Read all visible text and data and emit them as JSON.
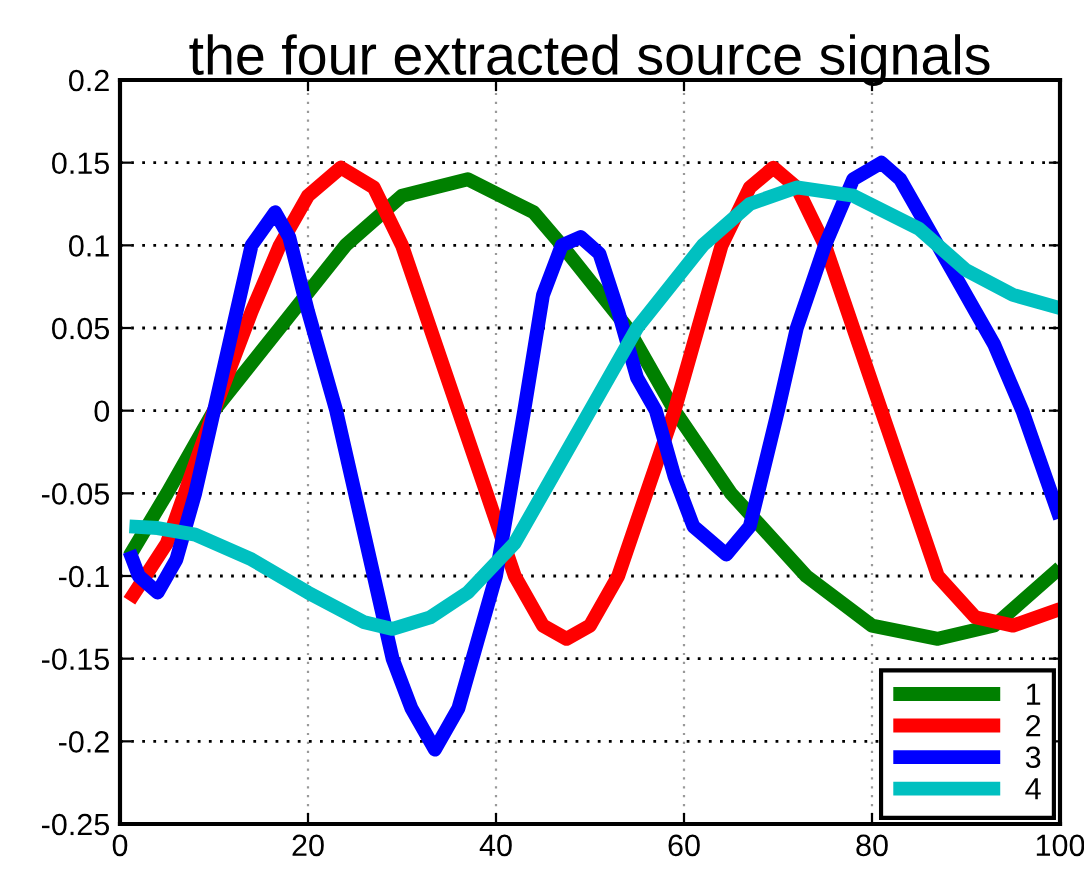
{
  "chart_data": {
    "type": "line",
    "title": "the four extracted source signals",
    "xlim": [
      0,
      100
    ],
    "ylim": [
      -0.25,
      0.2
    ],
    "xticks": [
      0,
      20,
      40,
      60,
      80,
      100
    ],
    "yticks": [
      -0.25,
      -0.2,
      -0.15,
      -0.1,
      -0.05,
      0,
      0.05,
      0.1,
      0.15,
      0.2
    ],
    "grid": true,
    "legend": "bottom right",
    "line_style": "solid",
    "marker": "none",
    "series": [
      {
        "name": "1",
        "color": "#008000",
        "x": [
          1,
          5,
          10,
          17,
          24,
          30,
          37,
          44,
          47,
          54,
          59,
          65,
          73,
          80,
          87,
          93,
          100
        ],
        "values": [
          -0.088,
          -0.05,
          0,
          0.05,
          0.1,
          0.13,
          0.14,
          0.12,
          0.1,
          0.05,
          0,
          -0.05,
          -0.1,
          -0.13,
          -0.138,
          -0.13,
          -0.095
        ]
      },
      {
        "name": "2",
        "color": "#ff0000",
        "x": [
          1,
          5,
          10,
          14,
          17,
          20,
          23.5,
          27,
          30,
          33,
          36,
          39,
          42,
          45,
          47.5,
          50,
          53,
          56,
          59,
          62,
          64,
          67,
          69.5,
          72,
          75,
          78,
          81,
          84,
          87,
          91,
          95,
          100
        ],
        "values": [
          -0.115,
          -0.08,
          0,
          0.06,
          0.1,
          0.13,
          0.147,
          0.135,
          0.1,
          0.05,
          0,
          -0.05,
          -0.1,
          -0.13,
          -0.138,
          -0.13,
          -0.1,
          -0.05,
          0,
          0.06,
          0.1,
          0.135,
          0.147,
          0.135,
          0.1,
          0.05,
          0,
          -0.05,
          -0.1,
          -0.125,
          -0.13,
          -0.12
        ]
      },
      {
        "name": "3",
        "color": "#0000ff",
        "x": [
          1,
          2,
          4,
          6,
          8,
          10,
          12,
          14,
          16.5,
          18,
          20,
          23,
          25,
          27,
          29,
          31,
          33.5,
          36,
          38,
          40,
          43,
          45,
          47,
          49,
          51,
          53,
          55,
          57,
          59,
          61,
          64.5,
          67,
          70,
          72,
          75,
          78,
          81,
          83,
          85,
          87,
          89,
          91,
          93,
          96,
          100
        ],
        "values": [
          -0.085,
          -0.1,
          -0.11,
          -0.09,
          -0.05,
          0,
          0.05,
          0.1,
          0.12,
          0.105,
          0.06,
          0,
          -0.05,
          -0.1,
          -0.15,
          -0.18,
          -0.205,
          -0.18,
          -0.14,
          -0.1,
          0,
          0.07,
          0.1,
          0.105,
          0.095,
          0.06,
          0.02,
          0,
          -0.04,
          -0.07,
          -0.087,
          -0.07,
          0,
          0.05,
          0.1,
          0.14,
          0.15,
          0.14,
          0.12,
          0.1,
          0.08,
          0.06,
          0.04,
          0,
          -0.065
        ]
      },
      {
        "name": "4",
        "color": "#00c0c0",
        "x": [
          1,
          4,
          8,
          14,
          20,
          26,
          29,
          33,
          37,
          42,
          46,
          50,
          55,
          62,
          67,
          72,
          78,
          85,
          90,
          95,
          100
        ],
        "values": [
          -0.07,
          -0.071,
          -0.075,
          -0.09,
          -0.11,
          -0.128,
          -0.132,
          -0.125,
          -0.11,
          -0.08,
          -0.04,
          0,
          0.05,
          0.1,
          0.125,
          0.135,
          0.13,
          0.11,
          0.085,
          0.07,
          0.062
        ]
      }
    ]
  }
}
